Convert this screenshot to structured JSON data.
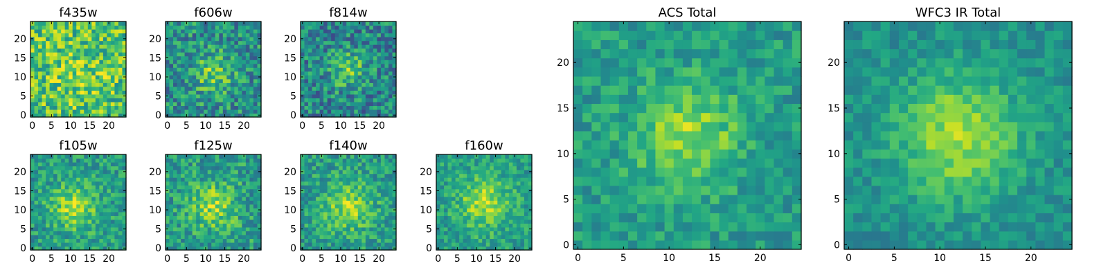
{
  "chart_data": [
    {
      "type": "heatmap",
      "title": "f435w",
      "size": 25,
      "xticks": [
        "0",
        "5",
        "10",
        "15",
        "20"
      ],
      "yticks": [
        "0",
        "5",
        "10",
        "15",
        "20"
      ],
      "colormap": "viridis"
    },
    {
      "type": "heatmap",
      "title": "f606w",
      "size": 25,
      "xticks": [
        "0",
        "5",
        "10",
        "15",
        "20"
      ],
      "yticks": [
        "0",
        "5",
        "10",
        "15",
        "20"
      ],
      "colormap": "viridis"
    },
    {
      "type": "heatmap",
      "title": "f814w",
      "size": 25,
      "xticks": [
        "0",
        "5",
        "10",
        "15",
        "20"
      ],
      "yticks": [
        "0",
        "5",
        "10",
        "15",
        "20"
      ],
      "colormap": "viridis"
    },
    {
      "type": "heatmap",
      "title": "f105w",
      "size": 25,
      "xticks": [
        "0",
        "5",
        "10",
        "15",
        "20"
      ],
      "yticks": [
        "0",
        "5",
        "10",
        "15",
        "20"
      ],
      "colormap": "viridis"
    },
    {
      "type": "heatmap",
      "title": "f125w",
      "size": 25,
      "xticks": [
        "0",
        "5",
        "10",
        "15",
        "20"
      ],
      "yticks": [
        "0",
        "5",
        "10",
        "15",
        "20"
      ],
      "colormap": "viridis"
    },
    {
      "type": "heatmap",
      "title": "f140w",
      "size": 25,
      "xticks": [
        "0",
        "5",
        "10",
        "15",
        "20"
      ],
      "yticks": [
        "0",
        "5",
        "10",
        "15",
        "20"
      ],
      "colormap": "viridis"
    },
    {
      "type": "heatmap",
      "title": "f160w",
      "size": 25,
      "xticks": [
        "0",
        "5",
        "10",
        "15",
        "20"
      ],
      "yticks": [
        "0",
        "5",
        "10",
        "15",
        "20"
      ],
      "colormap": "viridis"
    },
    {
      "type": "heatmap",
      "title": "ACS Total",
      "size": 25,
      "xticks": [
        "0",
        "5",
        "10",
        "15",
        "20"
      ],
      "yticks": [
        "0",
        "5",
        "10",
        "15",
        "20"
      ],
      "colormap": "viridis"
    },
    {
      "type": "heatmap",
      "title": "WFC3 IR Total",
      "size": 25,
      "xticks": [
        "0",
        "5",
        "10",
        "15",
        "20"
      ],
      "yticks": [
        "0",
        "5",
        "10",
        "15",
        "20"
      ],
      "colormap": "viridis"
    }
  ]
}
